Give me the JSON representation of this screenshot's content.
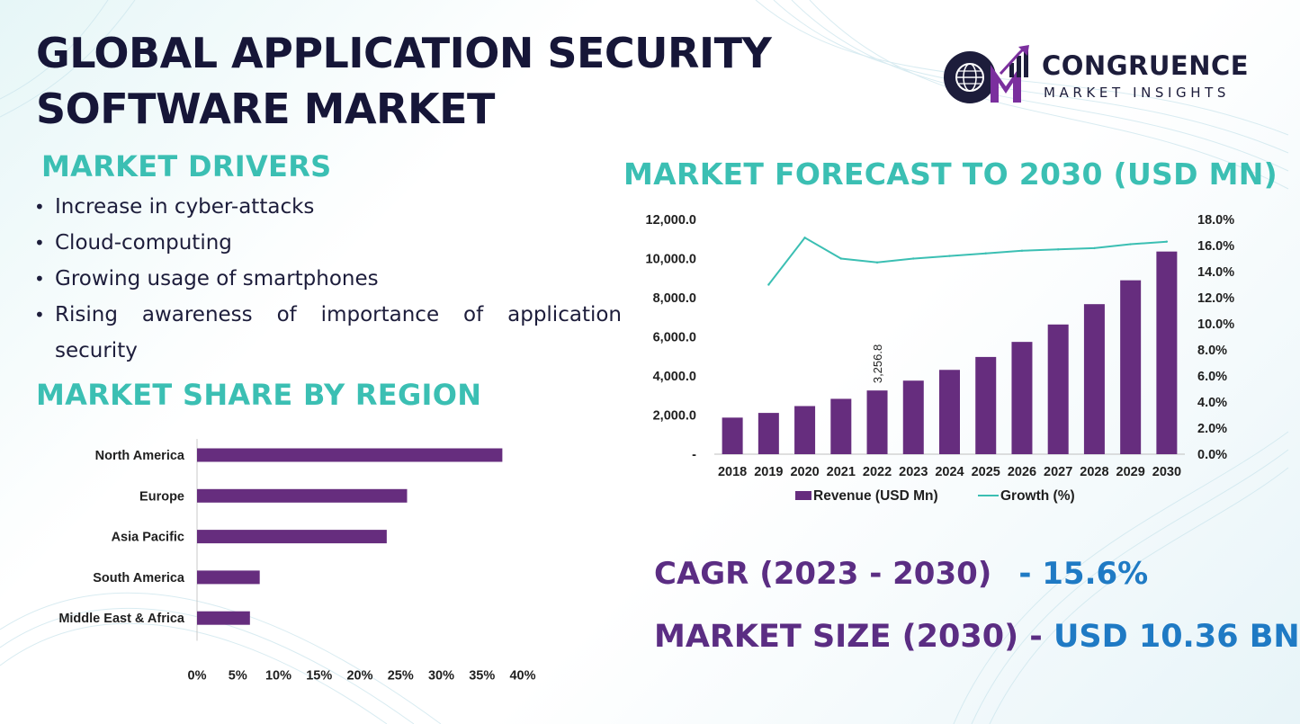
{
  "page": {
    "title_lines": [
      "GLOBAL APPLICATION SECURITY",
      "SOFTWARE MARKET"
    ],
    "brand": {
      "name": "CONGRUENCE",
      "tagline": "MARKET INSIGHTS",
      "colors": {
        "primary": "#1d1d3b",
        "accent": "#7b2f9e"
      }
    },
    "market_drivers": {
      "heading": "MARKET DRIVERS",
      "items": [
        "Increase in cyber-attacks",
        "Cloud-computing",
        "Growing usage of smartphones",
        "Rising awareness of importance of application security"
      ]
    },
    "region_heading": "MARKET SHARE BY REGION",
    "forecast_heading": "MARKET FORECAST TO 2030 (USD MN)",
    "cagr": {
      "label": "CAGR (2023 - 2030)",
      "value": "- 15.6%"
    },
    "market_size": {
      "label": "MARKET SIZE (2030) -",
      "value": "USD 10.36 BN"
    },
    "colors": {
      "teal": "#3bbfb3",
      "purple": "#662d7e",
      "blue": "#1f7ac4",
      "navy": "#161638"
    }
  },
  "chart_data": [
    {
      "type": "bar",
      "orientation": "horizontal",
      "categories": [
        "North America",
        "Europe",
        "Asia Pacific",
        "South America",
        "Middle East & Africa"
      ],
      "values": [
        37.5,
        25.8,
        23.3,
        7.7,
        6.5
      ],
      "xlim": [
        0,
        40
      ],
      "x_ticks": [
        "0%",
        "5%",
        "10%",
        "15%",
        "20%",
        "25%",
        "30%",
        "35%",
        "40%"
      ],
      "bar_color": "#662d7e",
      "grid": false
    },
    {
      "type": "bar",
      "categories": [
        "2018",
        "2019",
        "2020",
        "2021",
        "2022",
        "2023",
        "2024",
        "2025",
        "2026",
        "2027",
        "2028",
        "2029",
        "2030"
      ],
      "series": [
        {
          "name": "Revenue (USD Mn)",
          "type": "bar",
          "axis": "left",
          "color": "#662d7e",
          "values": [
            1870,
            2110,
            2460,
            2830,
            3256.8,
            3760,
            4310,
            4970,
            5740,
            6630,
            7670,
            8890,
            10360
          ]
        },
        {
          "name": "Growth (%)",
          "type": "line",
          "axis": "right",
          "color": "#3bbfb3",
          "values": [
            null,
            13.0,
            16.6,
            15.0,
            14.7,
            15.0,
            15.2,
            15.4,
            15.6,
            15.7,
            15.8,
            16.1,
            16.3
          ]
        }
      ],
      "left_axis": {
        "ylim": [
          0,
          12000
        ],
        "ticks": [
          "-",
          "2,000.0",
          "4,000.0",
          "6,000.0",
          "8,000.0",
          "10,000.0",
          "12,000.0"
        ]
      },
      "right_axis": {
        "ylim": [
          0,
          18
        ],
        "ticks": [
          "0.0%",
          "2.0%",
          "4.0%",
          "6.0%",
          "8.0%",
          "10.0%",
          "12.0%",
          "14.0%",
          "16.0%",
          "18.0%"
        ]
      },
      "data_labels": [
        {
          "category": "2022",
          "text": "3,256.8"
        }
      ],
      "legend": "bottom",
      "grid": false
    }
  ]
}
